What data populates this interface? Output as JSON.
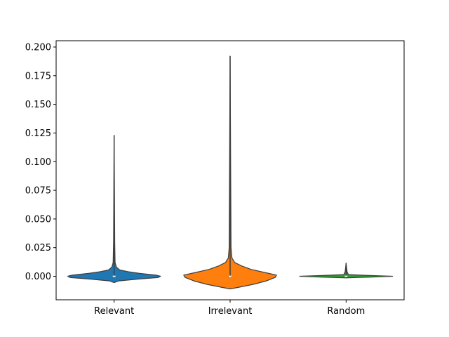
{
  "chart_data": {
    "type": "violin",
    "title": "",
    "xlabel": "",
    "ylabel": "",
    "categories": [
      "Relevant",
      "Irrelevant",
      "Random"
    ],
    "ylim": [
      -0.0205,
      0.2055
    ],
    "yticks": [
      0.0,
      0.025,
      0.05,
      0.075,
      0.1,
      0.125,
      0.15,
      0.175,
      0.2
    ],
    "ytick_labels": [
      "0.000",
      "0.025",
      "0.050",
      "0.075",
      "0.100",
      "0.125",
      "0.150",
      "0.175",
      "0.200"
    ],
    "grid": false,
    "series": [
      {
        "name": "Relevant",
        "color": "#1f77b4",
        "min": -0.0005,
        "max": 0.123,
        "median": 0.0,
        "q1": -0.0003,
        "q3": 0.0004,
        "profile": [
          [
            -0.0055,
            0.0
          ],
          [
            -0.004,
            0.1
          ],
          [
            -0.0025,
            0.5
          ],
          [
            -0.001,
            0.95
          ],
          [
            0.0,
            1.0
          ],
          [
            0.001,
            0.9
          ],
          [
            0.0025,
            0.55
          ],
          [
            0.004,
            0.3
          ],
          [
            0.0055,
            0.12
          ],
          [
            0.008,
            0.05
          ],
          [
            0.012,
            0.02
          ],
          [
            0.03,
            0.012
          ],
          [
            0.123,
            0.0
          ]
        ]
      },
      {
        "name": "Irrelevant",
        "color": "#ff7f0e",
        "min": -0.0005,
        "max": 0.192,
        "median": 0.0,
        "q1": -0.0002,
        "q3": 0.0003,
        "profile": [
          [
            -0.011,
            0.0
          ],
          [
            -0.0095,
            0.2
          ],
          [
            -0.007,
            0.5
          ],
          [
            -0.004,
            0.78
          ],
          [
            -0.001,
            0.97
          ],
          [
            0.001,
            1.0
          ],
          [
            0.003,
            0.78
          ],
          [
            0.006,
            0.45
          ],
          [
            0.009,
            0.25
          ],
          [
            0.012,
            0.1
          ],
          [
            0.016,
            0.04
          ],
          [
            0.025,
            0.02
          ],
          [
            0.192,
            0.0
          ]
        ]
      },
      {
        "name": "Random",
        "color": "#2ca02c",
        "min": -0.0003,
        "max": 0.0115,
        "median": 0.0,
        "q1": -0.0001,
        "q3": 0.0002,
        "profile": [
          [
            -0.0014,
            0.0
          ],
          [
            -0.0007,
            0.5
          ],
          [
            0.0,
            1.0
          ],
          [
            0.0007,
            0.5
          ],
          [
            0.0015,
            0.05
          ],
          [
            0.004,
            0.02
          ],
          [
            0.0115,
            0.0
          ]
        ]
      }
    ]
  }
}
